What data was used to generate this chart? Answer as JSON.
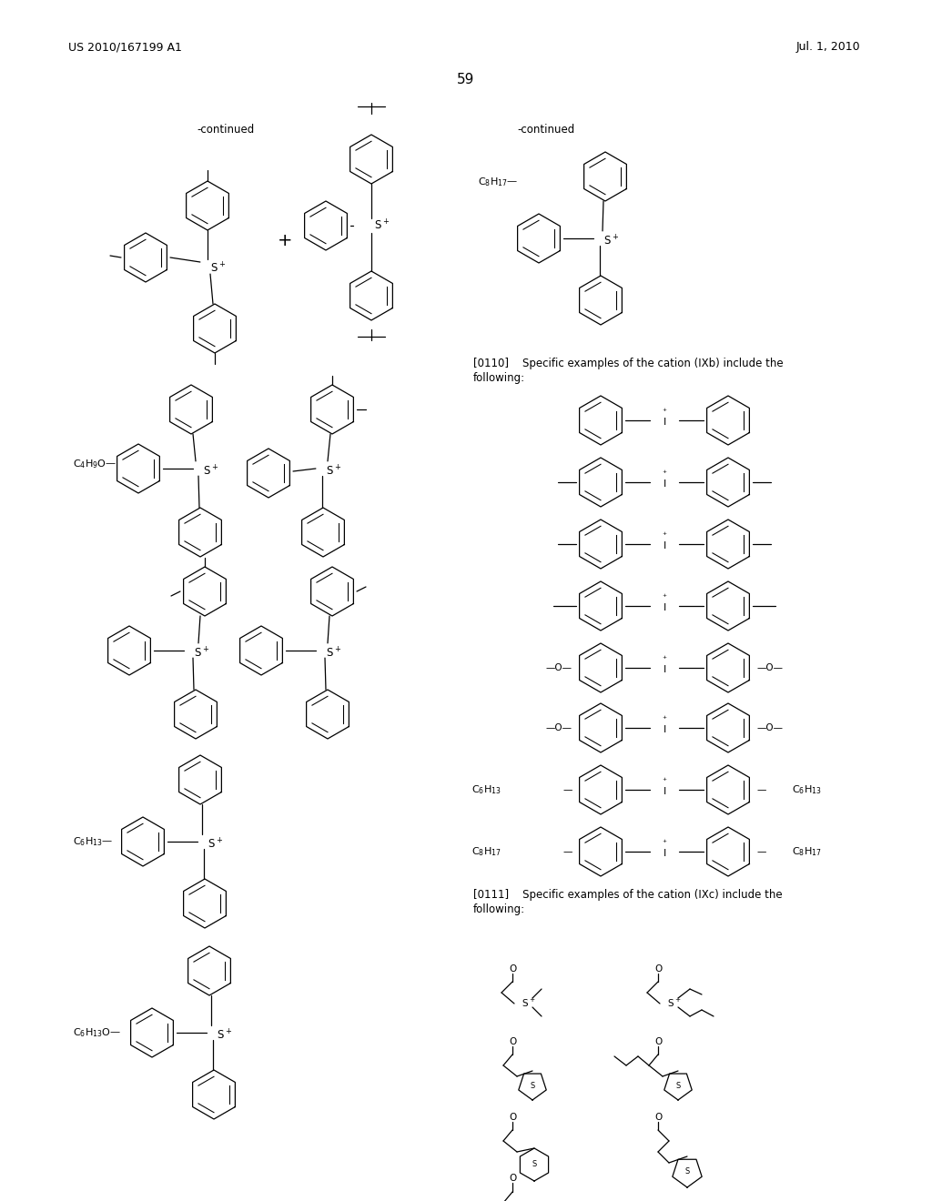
{
  "page_number": "59",
  "header_left": "US 2010/167199 A1",
  "header_right": "Jul. 1, 2010",
  "background_color": "#ffffff",
  "continued_left": "-continued",
  "continued_right": "-continued",
  "text_0110": "[0110]    Specific examples of the cation (IXb) include the",
  "text_0110b": "following:",
  "text_0111": "[0111]    Specific examples of the cation (IXc) include the",
  "text_0111b": "following:",
  "figsize": [
    10.24,
    13.2
  ],
  "dpi": 100
}
